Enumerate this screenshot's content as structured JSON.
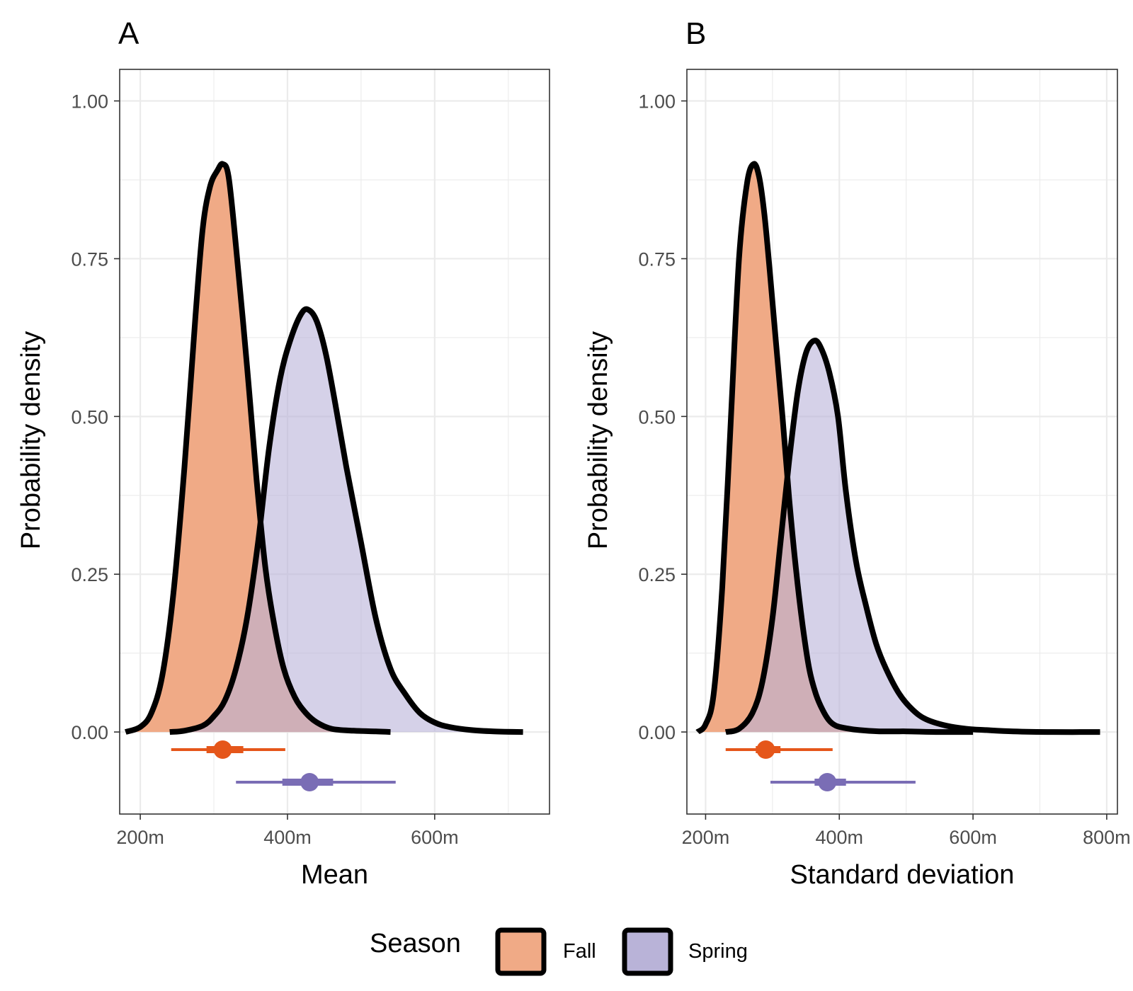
{
  "colors": {
    "fall_fill": "#f0aa86",
    "spring_fill": "#b9b3d8",
    "fall_interval": "#e5561a",
    "spring_interval": "#7a6db5",
    "outline": "#000000"
  },
  "legend": {
    "title": "Season",
    "items": [
      {
        "label": "Fall",
        "color": "#f0aa86"
      },
      {
        "label": "Spring",
        "color": "#b9b3d8"
      }
    ]
  },
  "chart_data": [
    {
      "panel": "A",
      "type": "area",
      "xlabel": "Mean",
      "ylabel": "Probability density",
      "xlim": [
        172,
        756
      ],
      "ylim": [
        -0.13,
        1.05
      ],
      "x_ticks": [
        200,
        400,
        600
      ],
      "x_tick_labels": [
        "200m",
        "400m",
        "600m"
      ],
      "y_ticks": [
        0,
        0.25,
        0.5,
        0.75,
        1.0
      ],
      "y_tick_labels": [
        "0.00",
        "0.25",
        "0.50",
        "0.75",
        "1.00"
      ],
      "grid": true,
      "series": [
        {
          "name": "Fall",
          "x": [
            180,
            200,
            215,
            230,
            245,
            260,
            275,
            285,
            295,
            305,
            312,
            320,
            330,
            345,
            358,
            370,
            382,
            395,
            410,
            425,
            440,
            460,
            490,
            520,
            540
          ],
          "y": [
            0.0,
            0.008,
            0.03,
            0.09,
            0.22,
            0.42,
            0.66,
            0.8,
            0.865,
            0.89,
            0.9,
            0.88,
            0.77,
            0.58,
            0.4,
            0.26,
            0.17,
            0.1,
            0.055,
            0.03,
            0.015,
            0.005,
            0.002,
            0.001,
            0.0
          ],
          "interval": {
            "point": 312,
            "inner": [
              290,
              340
            ],
            "outer": [
              242,
              397
            ]
          }
        },
        {
          "name": "Spring",
          "x": [
            240,
            260,
            285,
            300,
            315,
            330,
            345,
            360,
            375,
            390,
            405,
            420,
            430,
            440,
            452,
            465,
            480,
            500,
            520,
            540,
            560,
            580,
            600,
            620,
            650,
            680,
            720
          ],
          "y": [
            0.0,
            0.002,
            0.01,
            0.025,
            0.05,
            0.1,
            0.18,
            0.3,
            0.45,
            0.56,
            0.625,
            0.665,
            0.668,
            0.65,
            0.6,
            0.52,
            0.42,
            0.3,
            0.18,
            0.1,
            0.06,
            0.03,
            0.015,
            0.008,
            0.003,
            0.001,
            0.0
          ],
          "interval": {
            "point": 430,
            "inner": [
              393,
              462
            ],
            "outer": [
              330,
              547
            ]
          }
        }
      ]
    },
    {
      "panel": "B",
      "type": "area",
      "xlabel": "Standard deviation",
      "ylabel": "Probability density",
      "xlim": [
        172,
        816
      ],
      "ylim": [
        -0.13,
        1.05
      ],
      "x_ticks": [
        200,
        400,
        600,
        800
      ],
      "x_tick_labels": [
        "200m",
        "400m",
        "600m",
        "800m"
      ],
      "grid": true,
      "y_ticks": [
        0,
        0.25,
        0.5,
        0.75,
        1.0
      ],
      "y_tick_labels": [
        "0.00",
        "0.25",
        "0.50",
        "0.75",
        "1.00"
      ],
      "series": [
        {
          "name": "Fall",
          "x": [
            188,
            200,
            212,
            225,
            238,
            250,
            262,
            272,
            280,
            288,
            296,
            305,
            315,
            325,
            335,
            345,
            355,
            365,
            375,
            385,
            395,
            410,
            430,
            460,
            500,
            550,
            600
          ],
          "y": [
            0.0,
            0.012,
            0.06,
            0.23,
            0.5,
            0.75,
            0.87,
            0.9,
            0.88,
            0.82,
            0.73,
            0.62,
            0.5,
            0.37,
            0.26,
            0.17,
            0.1,
            0.06,
            0.035,
            0.018,
            0.01,
            0.006,
            0.003,
            0.001,
            0.001,
            0.0,
            0.0
          ],
          "interval": {
            "point": 290,
            "inner": [
              275,
              312
            ],
            "outer": [
              230,
              390
            ]
          }
        },
        {
          "name": "Spring",
          "x": [
            230,
            250,
            270,
            285,
            300,
            312,
            325,
            338,
            350,
            362,
            372,
            385,
            398,
            410,
            425,
            440,
            455,
            470,
            490,
            510,
            530,
            560,
            590,
            620,
            660,
            720,
            790
          ],
          "y": [
            0.0,
            0.005,
            0.03,
            0.08,
            0.18,
            0.3,
            0.43,
            0.54,
            0.6,
            0.62,
            0.61,
            0.57,
            0.5,
            0.38,
            0.27,
            0.2,
            0.14,
            0.1,
            0.06,
            0.035,
            0.02,
            0.01,
            0.005,
            0.003,
            0.001,
            0.0,
            0.0
          ],
          "interval": {
            "point": 382,
            "inner": [
              363,
              410
            ],
            "outer": [
              297,
              514
            ]
          }
        }
      ]
    }
  ]
}
